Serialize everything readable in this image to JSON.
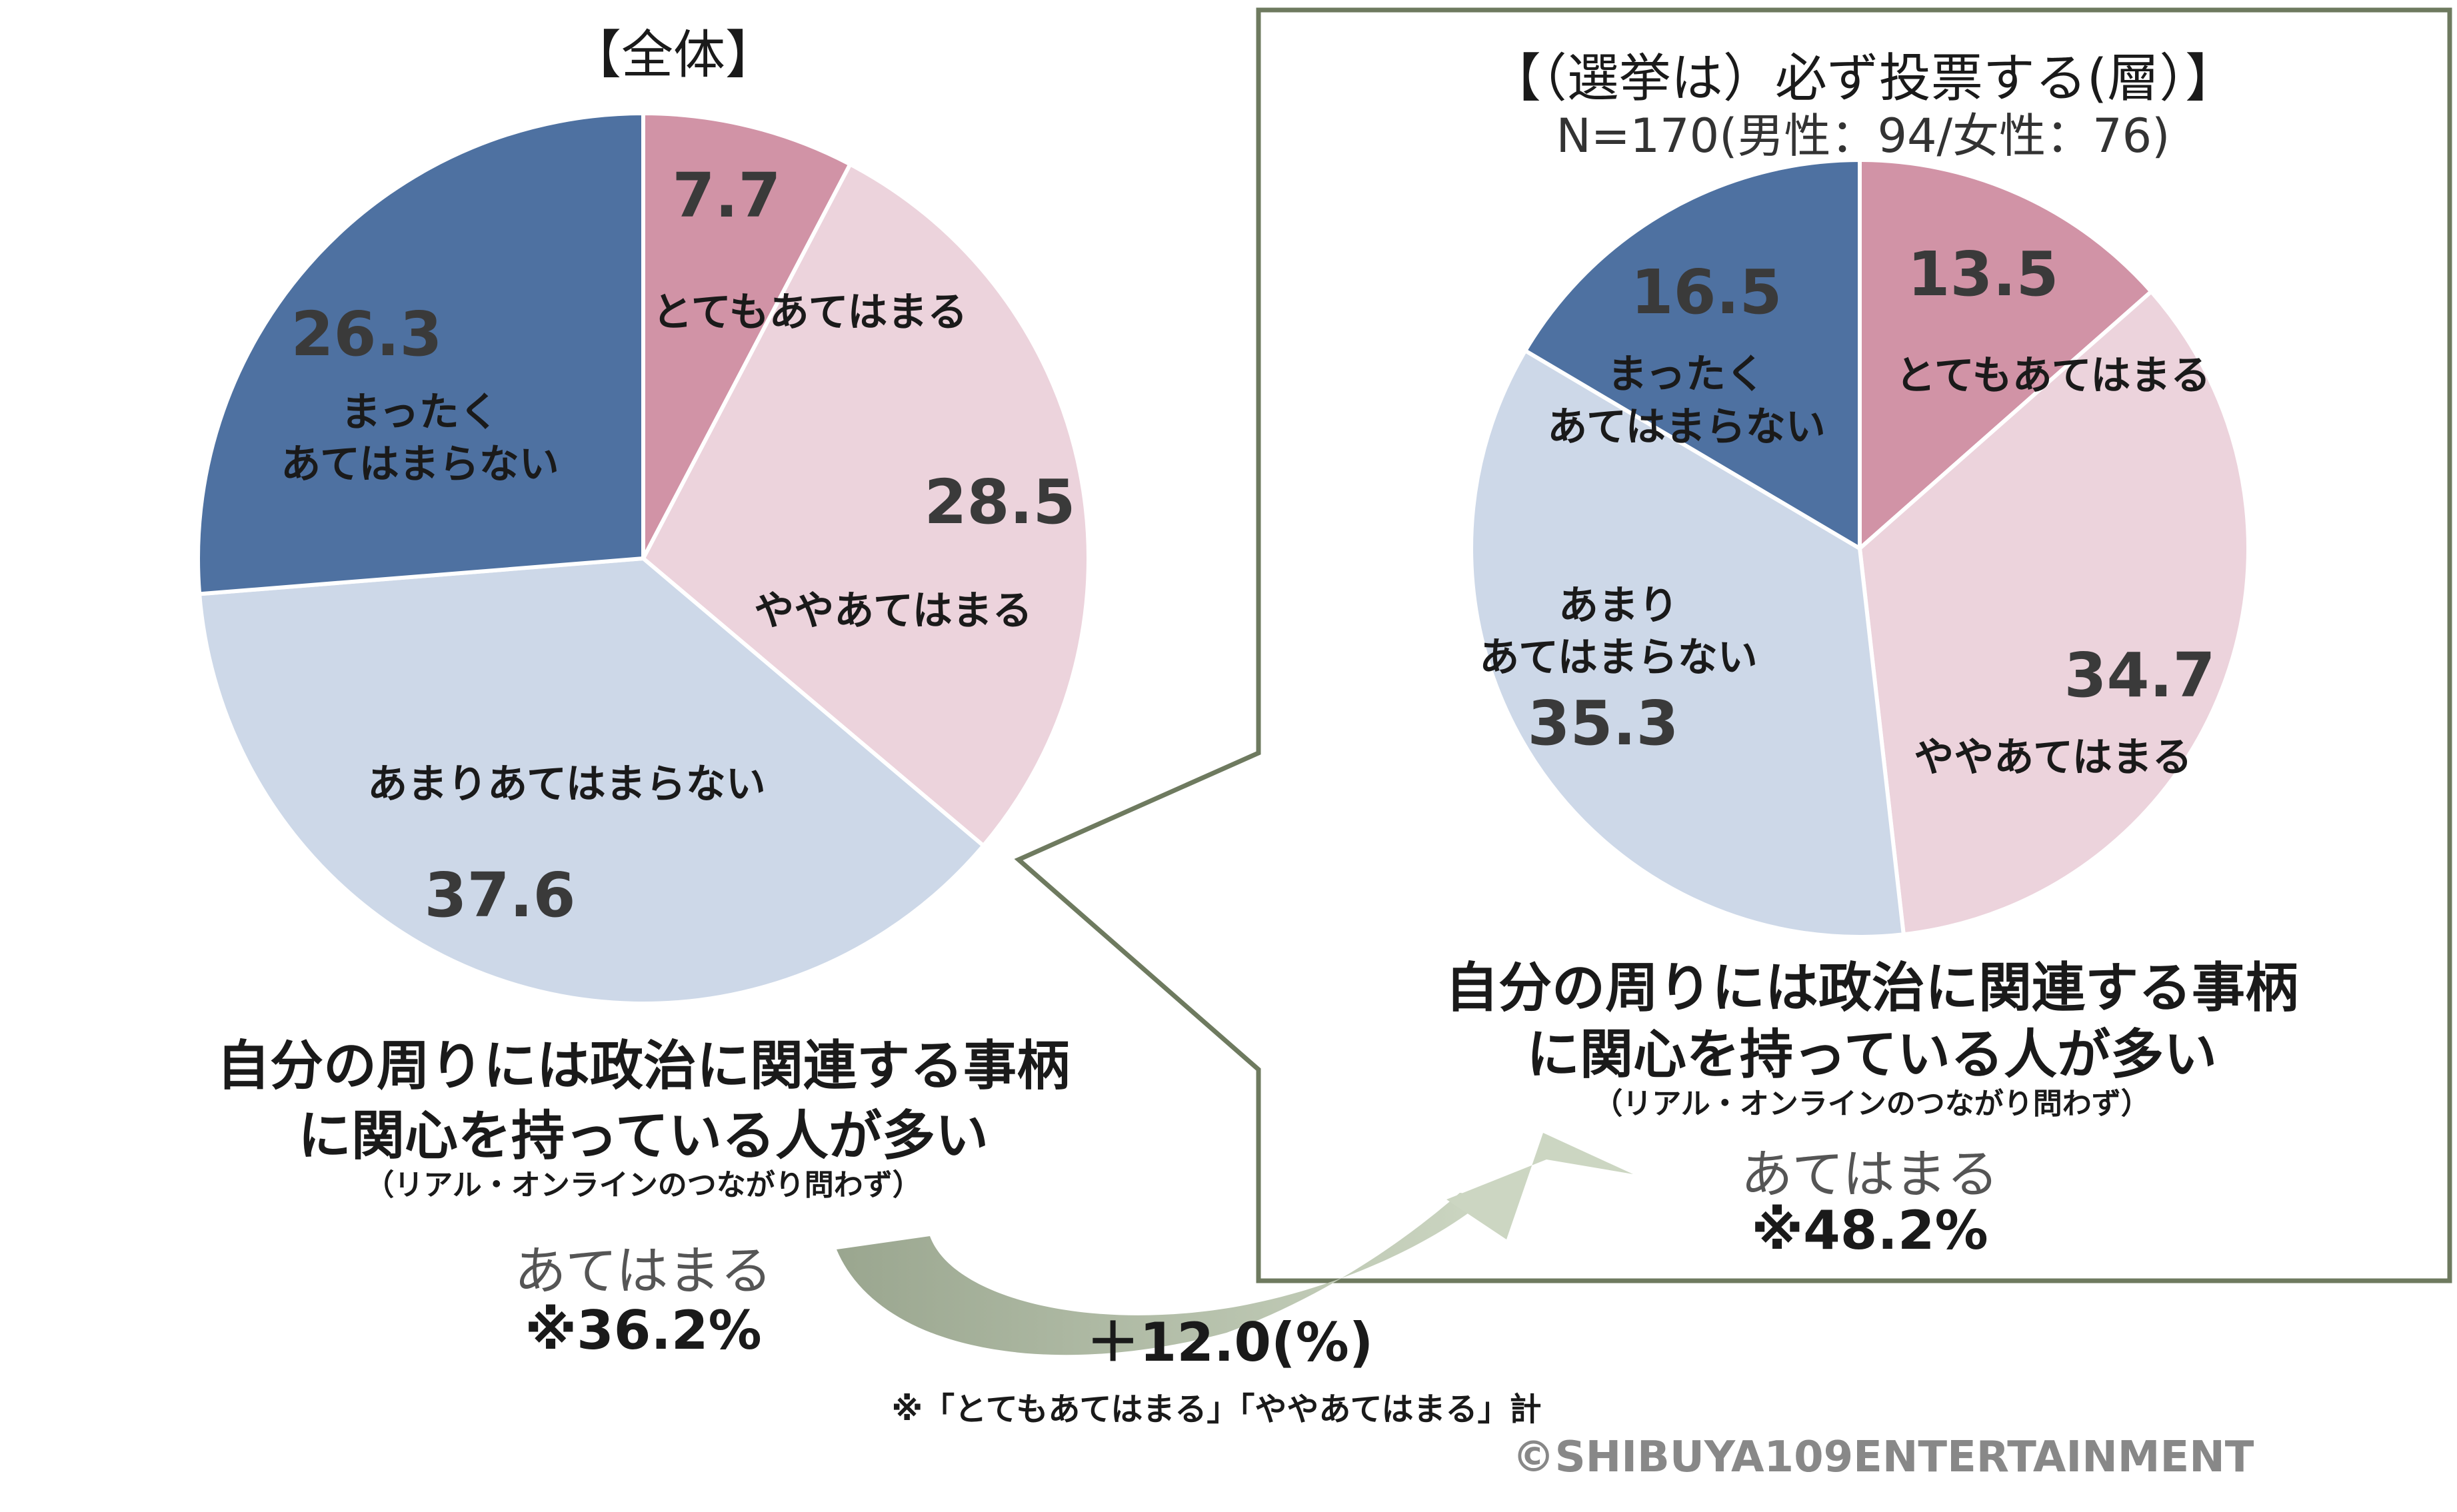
{
  "colors": {
    "totemo": "#d193a6",
    "yaya": "#ecd3dc",
    "amari": "#cdd8e8",
    "mattaku": "#4e71a1",
    "frame": "#6e7a5f",
    "arrow_dark": "#9aa68f",
    "arrow_light": "#ccd6c2",
    "value_text": "#3a3a3a"
  },
  "chart_data": [
    {
      "type": "pie",
      "title": "【全体】",
      "slices": [
        {
          "label": "とてもあてはまる",
          "value": 7.7,
          "value_text": "7.7",
          "color": "#d193a6"
        },
        {
          "label": "ややあてはまる",
          "value": 28.5,
          "value_text": "28.5",
          "color": "#ecd3dc"
        },
        {
          "label": "あまりあてはまらない",
          "value": 37.6,
          "value_text": "37.6",
          "color": "#cdd8e8"
        },
        {
          "label_lines": [
            "まったく",
            "あてはまらない"
          ],
          "value": 26.3,
          "value_text": "26.3",
          "color": "#4e71a1"
        }
      ],
      "caption_lines": [
        "自分の周りには政治に関連する事柄",
        "に関心を持っている人が多い"
      ],
      "caption_note": "（リアル・オンラインのつながり問わず）",
      "summary_label": "あてはまる",
      "summary_value": "※36.2%"
    },
    {
      "type": "pie",
      "title": "【（選挙は）必ず投票する(層）】",
      "subtitle": "N=170(男性：94/女性：76)",
      "slices": [
        {
          "label": "とてもあてはまる",
          "value": 13.5,
          "value_text": "13.5",
          "color": "#d193a6"
        },
        {
          "label": "ややあてはまる",
          "value": 34.7,
          "value_text": "34.7",
          "color": "#ecd3dc"
        },
        {
          "label_lines": [
            "あまり",
            "あてはまらない"
          ],
          "value": 35.3,
          "value_text": "35.3",
          "color": "#cdd8e8"
        },
        {
          "label_lines": [
            "まったく",
            "あてはまらない"
          ],
          "value": 16.5,
          "value_text": "16.5",
          "color": "#4e71a1"
        }
      ],
      "caption_lines": [
        "自分の周りには政治に関連する事柄",
        "に関心を持っている人が多い"
      ],
      "caption_note": "（リアル・オンラインのつながり問わず）",
      "summary_label": "あてはまる",
      "summary_value": "※48.2%"
    }
  ],
  "difference_label": "＋12.0(%)",
  "footnote": "※「とてもあてはまる」「ややあてはまる」計",
  "copyright": "©SHIBUYA109ENTERTAINMENT"
}
